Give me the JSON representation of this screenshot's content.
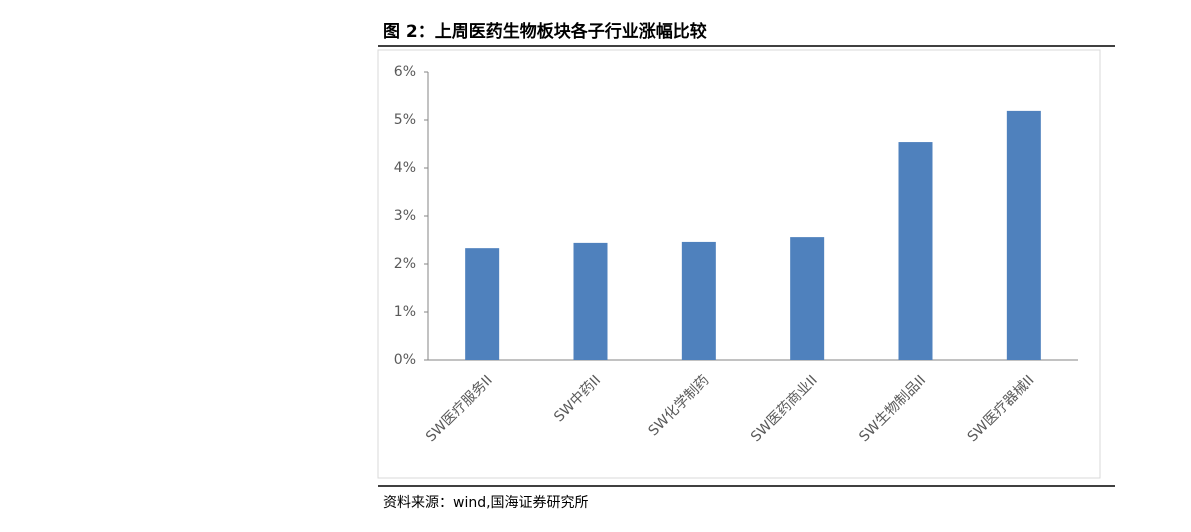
{
  "chart_data": {
    "type": "bar",
    "title": "图 2：上周医药生物板块各子行业涨幅比较",
    "source": "资料来源：wind,国海证券研究所",
    "categories": [
      "SW医疗服务II",
      "SW中药II",
      "SW化学制药",
      "SW医药商业II",
      "SW生物制品II",
      "SW医疗器械II"
    ],
    "values": [
      2.33,
      2.44,
      2.46,
      2.56,
      4.54,
      5.19
    ],
    "color": "#4f81bd",
    "ylim": [
      0,
      6
    ],
    "yticks": [
      {
        "value": 0,
        "label": "0%"
      },
      {
        "value": 1,
        "label": "1%"
      },
      {
        "value": 2,
        "label": "2%"
      },
      {
        "value": 3,
        "label": "3%"
      },
      {
        "value": 4,
        "label": "4%"
      },
      {
        "value": 5,
        "label": "5%"
      },
      {
        "value": 6,
        "label": "6%"
      }
    ],
    "grid": false
  }
}
